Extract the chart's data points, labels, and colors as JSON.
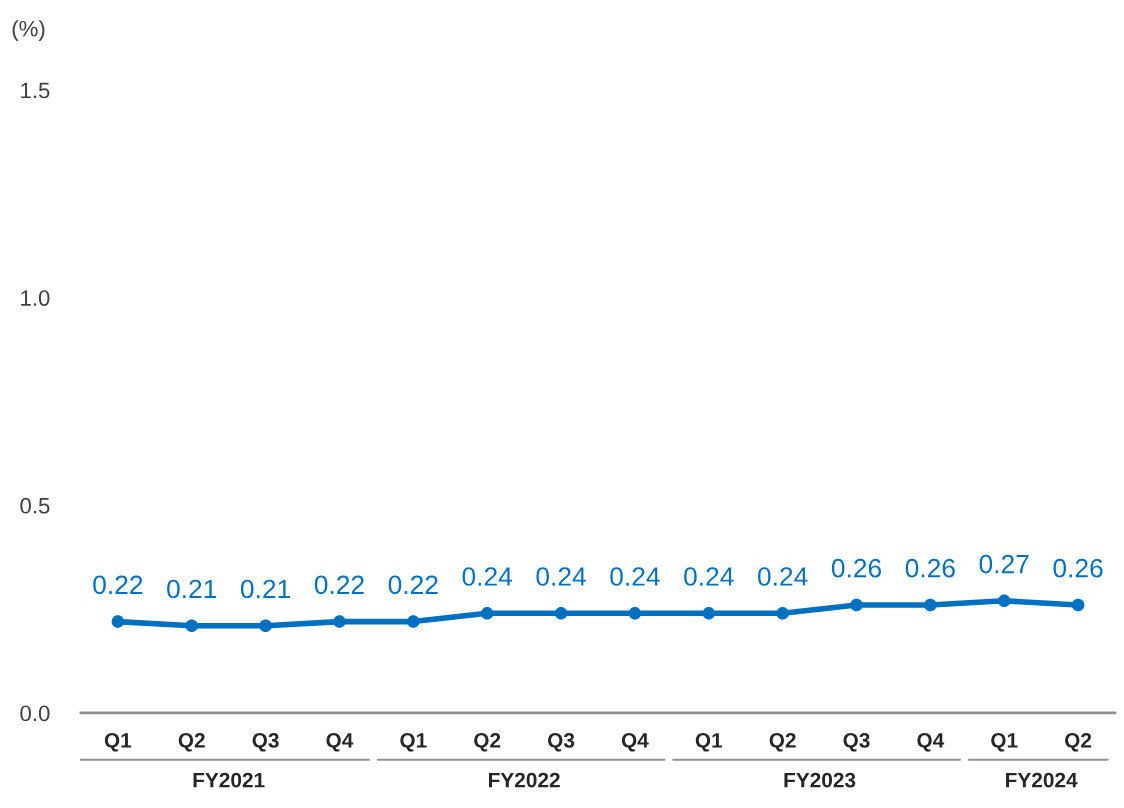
{
  "chart_data": {
    "type": "line",
    "ylabel": "(%)",
    "categories": [
      "Q1",
      "Q2",
      "Q3",
      "Q4",
      "Q1",
      "Q2",
      "Q3",
      "Q4",
      "Q1",
      "Q2",
      "Q3",
      "Q4",
      "Q1",
      "Q2"
    ],
    "series": [
      {
        "color": "#0070c0",
        "values": [
          0.22,
          0.21,
          0.21,
          0.22,
          0.22,
          0.24,
          0.24,
          0.24,
          0.24,
          0.24,
          0.26,
          0.26,
          0.27,
          0.26
        ]
      }
    ],
    "ylim": [
      0,
      1.5
    ],
    "yticks": [
      {
        "value": 0,
        "label": "0.0"
      },
      0.5,
      {
        "value": 1,
        "label": "1.0"
      },
      1.5
    ],
    "annotations": [
      "FY2021",
      "FY2022",
      "FY2023",
      "FY2024"
    ],
    "data_labels": true,
    "marker": "circle",
    "line_style": "solid",
    "grid": false,
    "legend": false
  }
}
